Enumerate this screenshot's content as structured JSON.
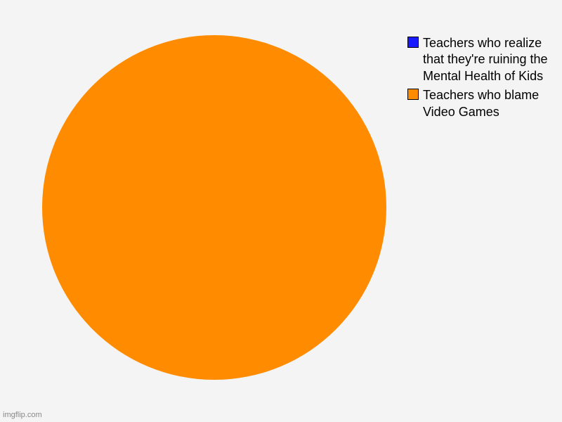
{
  "chart": {
    "type": "pie",
    "background_color": "#f4f4f4",
    "pie_diameter": 490,
    "slices": [
      {
        "label": "Teachers who blame Video Games",
        "value": 100,
        "color": "#ff8c00"
      },
      {
        "label": "Teachers who realize that they're ruining the Mental Health of Kids",
        "value": 0,
        "color": "#1a1aff"
      }
    ],
    "legend": {
      "items": [
        {
          "swatch_color": "#1a1aff",
          "label": "Teachers who realize that they're ruining the Mental Health of Kids"
        },
        {
          "swatch_color": "#ff8c00",
          "label": "Teachers who blame Video Games"
        }
      ],
      "label_fontsize": 18,
      "label_color": "#000000"
    }
  },
  "watermark": {
    "text": "imgflip.com",
    "color": "#888888"
  }
}
